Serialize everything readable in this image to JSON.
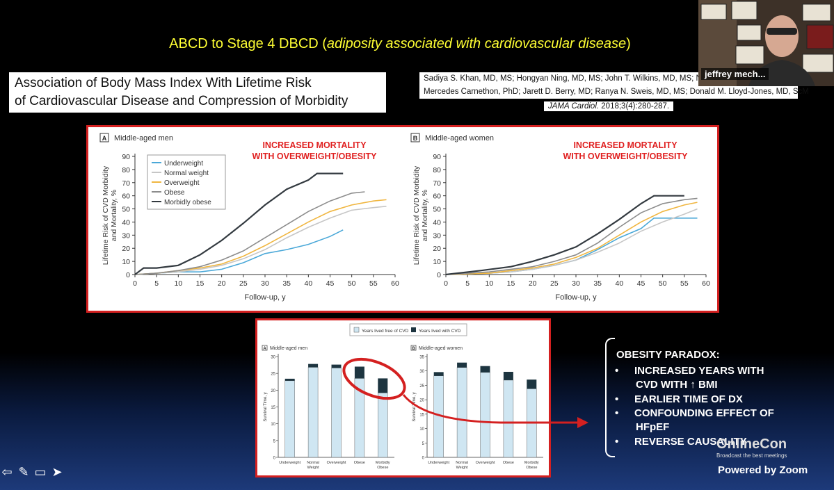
{
  "slide": {
    "title_plain": "ABCD to Stage 4 DBCD (",
    "title_italic": "adiposity associated with cardiovascular disease",
    "title_end": ")"
  },
  "paper": {
    "title_line1": "Association of Body Mass Index With Lifetime Risk",
    "title_line2": "of Cardiovascular Disease and Compression of Morbidity",
    "authors_line1": "Sadiya S. Khan, MD, MS; Hongyan Ning, MD, MS; John T. Wilkins, MD, MS; Norri",
    "authors_line2": "Mercedes Carnethon, PhD; Jarett D. Berry, MD; Ranya N. Sweis, MD, MS; Donald M. Lloyd-Jones, MD, ScM",
    "journal_name": "JAMA Cardiol.",
    "journal_ref": " 2018;3(4):280-287."
  },
  "webcam": {
    "speaker_name": "jeffrey mech..."
  },
  "annotation": {
    "line1": "INCREASED MORTALITY",
    "line2": "WITH OVERWEIGHT/OBESITY"
  },
  "paradox": {
    "heading": "OBESITY PARADOX:",
    "items": [
      "INCREASED YEARS WITH",
      "CVD WITH ↑ BMI",
      "EARLIER TIME OF DX",
      "CONFOUNDING EFFECT OF",
      "HFpEF",
      "REVERSE CAUSALITY"
    ]
  },
  "footer": {
    "watermark": "OnlineCon",
    "watermark_sub": "Broadcast the best meetings",
    "powered_by": "Powered by Zoom"
  },
  "toolbar": {
    "icons": [
      "arrow-left-icon",
      "pen-icon",
      "comment-icon",
      "pointer-icon"
    ]
  },
  "colors": {
    "red": "#d42020",
    "yellow": "#ffff33",
    "underweight": "#4aa8d8",
    "normal": "#c6c6c6",
    "overweight": "#f0b640",
    "obese": "#8c8c8c",
    "morbid": "#333a40",
    "free": "#cfe6f2",
    "withcvd": "#1d3540"
  },
  "chart_data": [
    {
      "type": "line",
      "panel": "A",
      "title": "Middle-aged men",
      "xlabel": "Follow-up, y",
      "ylabel": "Lifetime Risk of CVD Morbidity and Mortality, %",
      "xlim": [
        0,
        60
      ],
      "ylim": [
        0,
        90
      ],
      "xticks": [
        0,
        5,
        10,
        15,
        20,
        25,
        30,
        35,
        40,
        45,
        50,
        55,
        60
      ],
      "yticks": [
        0,
        10,
        20,
        30,
        40,
        50,
        60,
        70,
        80,
        90
      ],
      "legend_position": "top-left",
      "series": [
        {
          "name": "Underweight",
          "color": "#4aa8d8",
          "x": [
            0,
            5,
            10,
            15,
            20,
            25,
            30,
            35,
            40,
            45,
            48
          ],
          "y": [
            0,
            1,
            2,
            2,
            4,
            9,
            16,
            19,
            23,
            29,
            34
          ]
        },
        {
          "name": "Normal weight",
          "color": "#c6c6c6",
          "x": [
            0,
            5,
            10,
            15,
            20,
            25,
            30,
            35,
            40,
            45,
            50,
            55,
            58
          ],
          "y": [
            0,
            1,
            2,
            4,
            7,
            12,
            19,
            28,
            36,
            43,
            49,
            51,
            52
          ]
        },
        {
          "name": "Overweight",
          "color": "#f0b640",
          "x": [
            0,
            5,
            10,
            15,
            20,
            25,
            30,
            35,
            40,
            45,
            50,
            55,
            58
          ],
          "y": [
            0,
            1,
            3,
            5,
            8,
            14,
            22,
            31,
            40,
            48,
            53,
            56,
            57
          ]
        },
        {
          "name": "Obese",
          "color": "#8c8c8c",
          "x": [
            0,
            5,
            10,
            15,
            20,
            25,
            30,
            35,
            40,
            45,
            50,
            53
          ],
          "y": [
            0,
            1,
            3,
            6,
            11,
            18,
            28,
            38,
            48,
            56,
            62,
            63
          ]
        },
        {
          "name": "Morbidly obese",
          "color": "#333a40",
          "x": [
            0,
            2,
            5,
            10,
            15,
            20,
            25,
            30,
            35,
            40,
            42,
            45,
            48
          ],
          "y": [
            0,
            5,
            5,
            7,
            15,
            26,
            39,
            53,
            65,
            72,
            77,
            77,
            77
          ]
        }
      ]
    },
    {
      "type": "line",
      "panel": "B",
      "title": "Middle-aged women",
      "xlabel": "Follow-up, y",
      "ylabel": "Lifetime Risk of CVD Morbidity and Mortality, %",
      "xlim": [
        0,
        60
      ],
      "ylim": [
        0,
        90
      ],
      "xticks": [
        0,
        5,
        10,
        15,
        20,
        25,
        30,
        35,
        40,
        45,
        50,
        55,
        60
      ],
      "yticks": [
        0,
        10,
        20,
        30,
        40,
        50,
        60,
        70,
        80,
        90
      ],
      "series": [
        {
          "name": "Underweight",
          "color": "#4aa8d8",
          "x": [
            0,
            10,
            15,
            20,
            25,
            30,
            35,
            40,
            45,
            48,
            50,
            58
          ],
          "y": [
            0,
            1,
            2,
            4,
            7,
            11,
            19,
            28,
            35,
            43,
            43,
            43
          ]
        },
        {
          "name": "Normal weight",
          "color": "#c6c6c6",
          "x": [
            0,
            10,
            15,
            20,
            25,
            30,
            35,
            40,
            45,
            50,
            55,
            58
          ],
          "y": [
            0,
            1,
            2,
            4,
            7,
            11,
            17,
            24,
            33,
            40,
            46,
            50
          ]
        },
        {
          "name": "Overweight",
          "color": "#f0b640",
          "x": [
            0,
            10,
            15,
            20,
            25,
            30,
            35,
            40,
            45,
            50,
            55,
            58
          ],
          "y": [
            0,
            1,
            3,
            5,
            8,
            13,
            20,
            30,
            40,
            48,
            53,
            55
          ]
        },
        {
          "name": "Obese",
          "color": "#8c8c8c",
          "x": [
            0,
            10,
            15,
            20,
            25,
            30,
            35,
            40,
            45,
            50,
            55,
            58
          ],
          "y": [
            0,
            2,
            4,
            6,
            10,
            15,
            24,
            36,
            47,
            54,
            57,
            58
          ]
        },
        {
          "name": "Morbidly obese",
          "color": "#333a40",
          "x": [
            0,
            8,
            15,
            20,
            25,
            30,
            35,
            40,
            45,
            48,
            50,
            55
          ],
          "y": [
            0,
            3,
            6,
            10,
            15,
            21,
            31,
            42,
            54,
            60,
            60,
            60
          ]
        }
      ]
    },
    {
      "type": "bar",
      "panel": "A",
      "title": "Middle-aged men",
      "ylabel": "Survival Time, y",
      "ylim": [
        0,
        30
      ],
      "yticks": [
        0,
        5,
        10,
        15,
        20,
        25,
        30
      ],
      "categories": [
        "Underweight",
        "Normal\nWeight",
        "Overweight",
        "Obese",
        "Morbidly\nObese"
      ],
      "legend": [
        "Years lived free of CVD",
        "Years lived with CVD"
      ],
      "series": [
        {
          "name": "Years lived free of CVD",
          "values": [
            22.8,
            26.8,
            26.6,
            23.5,
            19.2
          ]
        },
        {
          "name": "Years lived with CVD",
          "values": [
            0.6,
            1.0,
            1.0,
            3.5,
            4.3
          ]
        }
      ]
    },
    {
      "type": "bar",
      "panel": "B",
      "title": "Middle-aged women",
      "ylabel": "Survival Time, y",
      "ylim": [
        0,
        35
      ],
      "yticks": [
        0,
        5,
        10,
        15,
        20,
        25,
        30,
        35
      ],
      "categories": [
        "Underweight",
        "Normal\nWeight",
        "Overweight",
        "Obese",
        "Morbidly\nObese"
      ],
      "series": [
        {
          "name": "Years lived free of CVD",
          "values": [
            28.3,
            31.2,
            29.5,
            26.8,
            23.8
          ]
        },
        {
          "name": "Years lived with CVD",
          "values": [
            1.3,
            1.7,
            2.2,
            2.9,
            3.2
          ]
        }
      ]
    }
  ]
}
